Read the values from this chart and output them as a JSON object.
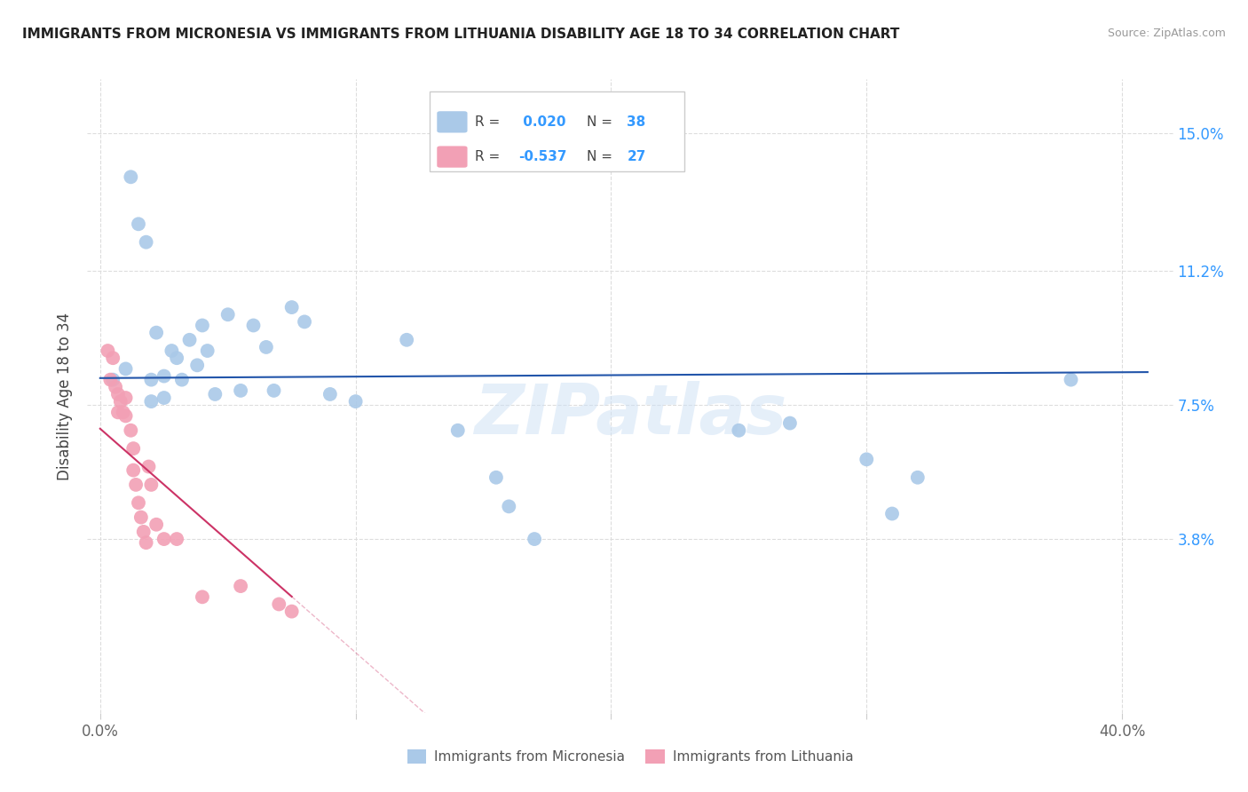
{
  "title": "IMMIGRANTS FROM MICRONESIA VS IMMIGRANTS FROM LITHUANIA DISABILITY AGE 18 TO 34 CORRELATION CHART",
  "source": "Source: ZipAtlas.com",
  "ylabel": "Disability Age 18 to 34",
  "xlim": [
    -0.005,
    0.42
  ],
  "ylim": [
    -0.01,
    0.165
  ],
  "ytick_pos": [
    0.038,
    0.075,
    0.112,
    0.15
  ],
  "ytick_labels": [
    "3.8%",
    "7.5%",
    "11.2%",
    "15.0%"
  ],
  "xtick_pos": [
    0.0,
    0.1,
    0.2,
    0.3,
    0.4
  ],
  "xtick_labels": [
    "0.0%",
    "",
    "",
    "",
    "40.0%"
  ],
  "micronesia_color": "#aac9e8",
  "lithuania_color": "#f2a0b5",
  "micronesia_line_color": "#2255aa",
  "lithuania_line_color": "#cc3366",
  "watermark": "ZIPatlas",
  "mic_R": 0.02,
  "mic_N": 38,
  "lit_R": -0.537,
  "lit_N": 27,
  "micronesia_x": [
    0.005,
    0.01,
    0.012,
    0.015,
    0.018,
    0.02,
    0.02,
    0.022,
    0.025,
    0.025,
    0.028,
    0.03,
    0.032,
    0.035,
    0.038,
    0.04,
    0.042,
    0.045,
    0.05,
    0.055,
    0.06,
    0.065,
    0.068,
    0.075,
    0.08,
    0.09,
    0.1,
    0.12,
    0.14,
    0.155,
    0.16,
    0.17,
    0.25,
    0.27,
    0.3,
    0.31,
    0.32,
    0.38
  ],
  "micronesia_y": [
    0.082,
    0.085,
    0.138,
    0.125,
    0.12,
    0.082,
    0.076,
    0.095,
    0.083,
    0.077,
    0.09,
    0.088,
    0.082,
    0.093,
    0.086,
    0.097,
    0.09,
    0.078,
    0.1,
    0.079,
    0.097,
    0.091,
    0.079,
    0.102,
    0.098,
    0.078,
    0.076,
    0.093,
    0.068,
    0.055,
    0.047,
    0.038,
    0.068,
    0.07,
    0.06,
    0.045,
    0.055,
    0.082
  ],
  "lithuania_x": [
    0.003,
    0.004,
    0.005,
    0.006,
    0.007,
    0.007,
    0.008,
    0.009,
    0.01,
    0.01,
    0.012,
    0.013,
    0.013,
    0.014,
    0.015,
    0.016,
    0.017,
    0.018,
    0.019,
    0.02,
    0.022,
    0.025,
    0.03,
    0.04,
    0.055,
    0.07,
    0.075
  ],
  "lithuania_y": [
    0.09,
    0.082,
    0.088,
    0.08,
    0.078,
    0.073,
    0.076,
    0.073,
    0.077,
    0.072,
    0.068,
    0.063,
    0.057,
    0.053,
    0.048,
    0.044,
    0.04,
    0.037,
    0.058,
    0.053,
    0.042,
    0.038,
    0.038,
    0.022,
    0.025,
    0.02,
    0.018
  ]
}
